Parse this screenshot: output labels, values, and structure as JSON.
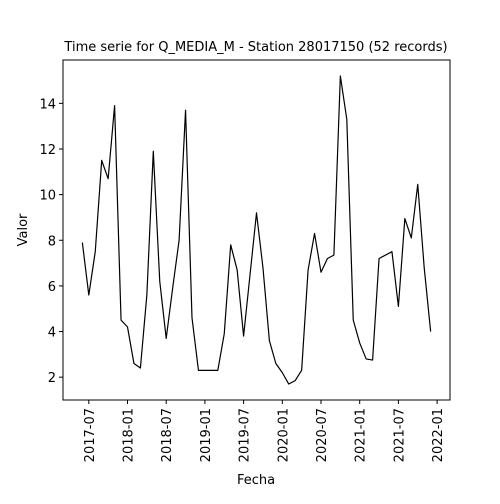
{
  "chart_data": {
    "type": "line",
    "title": "Time serie for Q_MEDIA_M - Station 28017150 (52 records)",
    "x_label": "Fecha",
    "y_label": "Valor",
    "color": "#000000",
    "x": [
      "2017-06",
      "2017-07",
      "2017-08",
      "2017-09",
      "2017-10",
      "2017-11",
      "2017-12",
      "2018-01",
      "2018-02",
      "2018-03",
      "2018-04",
      "2018-05",
      "2018-06",
      "2018-07",
      "2018-08",
      "2018-09",
      "2018-10",
      "2018-11",
      "2018-12",
      "2019-03",
      "2019-04",
      "2019-05",
      "2019-06",
      "2019-07",
      "2019-08",
      "2019-09",
      "2019-10",
      "2019-11",
      "2019-12",
      "2020-01",
      "2020-02",
      "2020-03",
      "2020-04",
      "2020-05",
      "2020-06",
      "2020-07",
      "2020-08",
      "2020-09",
      "2020-10",
      "2020-11",
      "2020-12",
      "2021-01",
      "2021-02",
      "2021-03",
      "2021-04",
      "2021-06",
      "2021-07",
      "2021-08",
      "2021-09",
      "2021-10",
      "2021-11",
      "2021-12"
    ],
    "values": [
      7.9,
      5.6,
      7.5,
      11.5,
      10.7,
      13.9,
      4.5,
      4.2,
      2.6,
      2.4,
      5.6,
      11.9,
      6.2,
      3.7,
      5.9,
      8.0,
      13.7,
      4.6,
      2.3,
      2.3,
      3.9,
      7.8,
      6.7,
      3.8,
      6.5,
      9.2,
      6.8,
      3.6,
      2.6,
      2.2,
      1.7,
      1.85,
      2.3,
      6.7,
      8.3,
      6.6,
      7.2,
      7.35,
      15.2,
      13.3,
      4.5,
      3.5,
      2.8,
      2.75,
      7.2,
      7.5,
      5.1,
      8.95,
      8.1,
      10.45,
      6.8,
      4.0
    ],
    "xlim": [
      "2017-03",
      "2022-03"
    ],
    "xticks": [
      "2017-07",
      "2018-01",
      "2018-07",
      "2019-01",
      "2019-07",
      "2020-01",
      "2020-07",
      "2021-01",
      "2021-07",
      "2022-01"
    ],
    "ylim": [
      1,
      15.9
    ],
    "yticks": [
      2,
      4,
      6,
      8,
      10,
      12,
      14
    ]
  }
}
